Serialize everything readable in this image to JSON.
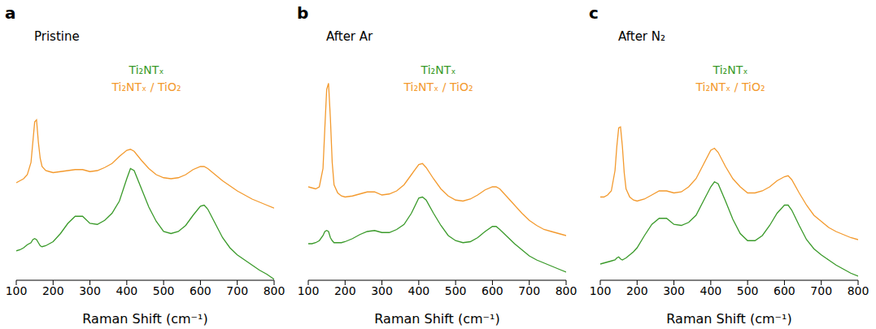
{
  "chart_data": [
    {
      "type": "line",
      "panel": "a",
      "title": "Pristine",
      "x_label": "Raman Shift (cm⁻¹)",
      "x": [
        100,
        110,
        120,
        130,
        140,
        145,
        150,
        155,
        160,
        165,
        170,
        180,
        190,
        200,
        220,
        240,
        260,
        280,
        300,
        320,
        340,
        360,
        380,
        400,
        410,
        420,
        440,
        460,
        480,
        500,
        520,
        540,
        560,
        580,
        600,
        610,
        620,
        640,
        660,
        680,
        700,
        720,
        740,
        760,
        780,
        800
      ],
      "xlim": [
        100,
        800
      ],
      "xticks": [
        100,
        200,
        300,
        400,
        500,
        600,
        700,
        800
      ],
      "ylim": [
        0,
        10
      ],
      "tick_labels": "x",
      "grid": false,
      "legend": "top-right",
      "series": [
        {
          "name": "Ti₂NTₓ / TiO₂",
          "color": "#f39a2e",
          "values": [
            4.8,
            4.9,
            5.0,
            5.2,
            5.8,
            6.8,
            7.8,
            7.9,
            6.8,
            6.0,
            5.6,
            5.4,
            5.35,
            5.3,
            5.35,
            5.4,
            5.45,
            5.45,
            5.35,
            5.4,
            5.55,
            5.75,
            6.1,
            6.4,
            6.45,
            6.35,
            5.9,
            5.5,
            5.2,
            5.05,
            5.0,
            5.05,
            5.2,
            5.45,
            5.6,
            5.6,
            5.5,
            5.2,
            4.9,
            4.65,
            4.4,
            4.2,
            4.0,
            3.85,
            3.7,
            3.55
          ]
        },
        {
          "name": "Ti₂NTₓ",
          "color": "#3a9a2a",
          "values": [
            1.45,
            1.5,
            1.6,
            1.75,
            1.85,
            2.0,
            2.05,
            2.0,
            1.85,
            1.7,
            1.65,
            1.7,
            1.8,
            1.9,
            2.3,
            2.8,
            3.15,
            3.15,
            2.8,
            2.75,
            2.95,
            3.3,
            3.9,
            5.0,
            5.5,
            5.4,
            4.5,
            3.6,
            2.9,
            2.4,
            2.3,
            2.4,
            2.7,
            3.2,
            3.65,
            3.7,
            3.5,
            2.8,
            2.1,
            1.6,
            1.25,
            1.0,
            0.75,
            0.5,
            0.3,
            0.05
          ]
        }
      ]
    },
    {
      "type": "line",
      "panel": "b",
      "title": "After Ar",
      "x_label": "Raman Shift (cm⁻¹)",
      "x": [
        100,
        110,
        120,
        130,
        140,
        145,
        150,
        155,
        160,
        165,
        170,
        180,
        190,
        200,
        220,
        240,
        260,
        280,
        300,
        320,
        340,
        360,
        380,
        400,
        410,
        420,
        440,
        460,
        480,
        500,
        520,
        540,
        560,
        580,
        600,
        610,
        620,
        640,
        660,
        680,
        700,
        720,
        740,
        760,
        780,
        800
      ],
      "xlim": [
        100,
        800
      ],
      "xticks": [
        100,
        200,
        300,
        400,
        500,
        600,
        700,
        800
      ],
      "ylim": [
        0,
        10
      ],
      "tick_labels": "x",
      "grid": false,
      "legend": "top-right",
      "series": [
        {
          "name": "Ti₂NTₓ / TiO₂",
          "color": "#f39a2e",
          "values": [
            4.6,
            4.55,
            4.5,
            4.6,
            5.5,
            7.5,
            9.4,
            9.7,
            8.0,
            5.8,
            4.7,
            4.3,
            4.15,
            4.1,
            4.15,
            4.25,
            4.35,
            4.35,
            4.2,
            4.25,
            4.4,
            4.7,
            5.2,
            5.7,
            5.75,
            5.55,
            5.0,
            4.5,
            4.15,
            3.95,
            3.9,
            4.0,
            4.2,
            4.45,
            4.6,
            4.6,
            4.5,
            4.1,
            3.7,
            3.3,
            2.95,
            2.7,
            2.5,
            2.4,
            2.3,
            2.2
          ]
        },
        {
          "name": "Ti₂NTₓ",
          "color": "#3a9a2a",
          "values": [
            1.8,
            1.8,
            1.85,
            1.95,
            2.2,
            2.4,
            2.45,
            2.4,
            2.1,
            1.95,
            1.85,
            1.85,
            1.85,
            1.9,
            2.05,
            2.25,
            2.4,
            2.45,
            2.35,
            2.35,
            2.5,
            2.75,
            3.3,
            4.05,
            4.1,
            3.95,
            3.3,
            2.7,
            2.2,
            1.95,
            1.85,
            1.9,
            2.1,
            2.4,
            2.65,
            2.65,
            2.5,
            2.15,
            1.8,
            1.5,
            1.2,
            1.0,
            0.85,
            0.7,
            0.55,
            0.4
          ]
        }
      ]
    },
    {
      "type": "line",
      "panel": "c",
      "title": "After N₂",
      "x_label": "Raman Shift (cm⁻¹)",
      "x": [
        100,
        110,
        120,
        130,
        140,
        145,
        150,
        155,
        160,
        165,
        170,
        180,
        190,
        200,
        220,
        240,
        260,
        280,
        300,
        320,
        340,
        360,
        380,
        400,
        410,
        420,
        440,
        460,
        480,
        500,
        520,
        540,
        560,
        580,
        600,
        610,
        620,
        640,
        660,
        680,
        700,
        720,
        740,
        760,
        780,
        800
      ],
      "xlim": [
        100,
        800
      ],
      "xticks": [
        100,
        200,
        300,
        400,
        500,
        600,
        700,
        800
      ],
      "ylim": [
        0,
        10
      ],
      "tick_labels": "x",
      "grid": false,
      "legend": "top-right",
      "series": [
        {
          "name": "Ti₂NTₓ / TiO₂",
          "color": "#f39a2e",
          "values": [
            4.1,
            4.1,
            4.2,
            4.4,
            5.4,
            6.6,
            7.5,
            7.55,
            6.6,
            5.3,
            4.5,
            4.1,
            3.95,
            3.9,
            4.0,
            4.2,
            4.4,
            4.4,
            4.3,
            4.35,
            4.6,
            5.0,
            5.7,
            6.4,
            6.5,
            6.3,
            5.6,
            5.0,
            4.6,
            4.3,
            4.3,
            4.4,
            4.6,
            4.9,
            5.1,
            5.15,
            4.95,
            4.3,
            3.7,
            3.2,
            2.9,
            2.6,
            2.4,
            2.25,
            2.1,
            2.0
          ]
        },
        {
          "name": "Ti₂NTₓ",
          "color": "#3a9a2a",
          "values": [
            0.8,
            0.85,
            0.9,
            0.95,
            1.0,
            1.1,
            1.15,
            1.05,
            1.0,
            1.05,
            1.1,
            1.25,
            1.4,
            1.6,
            2.2,
            2.75,
            3.05,
            3.05,
            2.75,
            2.7,
            2.85,
            3.2,
            3.9,
            4.6,
            4.85,
            4.75,
            3.9,
            3.0,
            2.3,
            1.95,
            1.95,
            2.2,
            2.7,
            3.3,
            3.7,
            3.7,
            3.45,
            2.7,
            2.0,
            1.55,
            1.25,
            1.0,
            0.75,
            0.55,
            0.35,
            0.2
          ]
        }
      ]
    }
  ]
}
